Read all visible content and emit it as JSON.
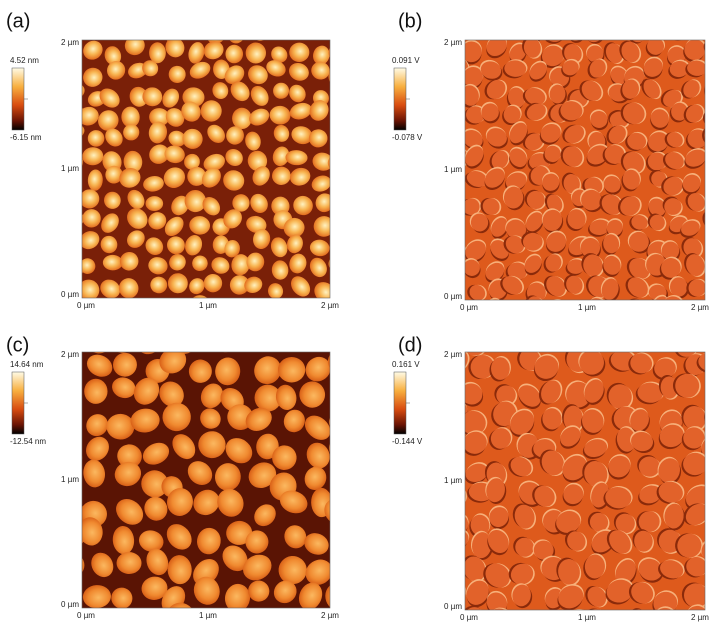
{
  "panels": [
    {
      "label": "(a)",
      "colorbar": {
        "max": "4.52 nm",
        "min": "-6.15 nm"
      },
      "y_ticks": [
        "2 µm",
        "1 µm",
        "0 µm"
      ],
      "x_ticks": [
        "0 µm",
        "1 µm",
        "2 µm"
      ]
    },
    {
      "label": "(b)",
      "colorbar": {
        "max": "0.091 V",
        "min": "-0.078 V"
      },
      "y_ticks": [
        "2 µm",
        "1 µm",
        "0 µm"
      ],
      "x_ticks": [
        "0 µm",
        "1 µm",
        "2 µm"
      ]
    },
    {
      "label": "(c)",
      "colorbar": {
        "max": "14.64 nm",
        "min": "-12.54 nm"
      },
      "y_ticks": [
        "2 µm",
        "1 µm",
        "0 µm"
      ],
      "x_ticks": [
        "0 µm",
        "1 µm",
        "2 µm"
      ]
    },
    {
      "label": "(d)",
      "colorbar": {
        "max": "0.161 V",
        "min": "-0.144 V"
      },
      "y_ticks": [
        "2 µm",
        "1 µm",
        "0 µm"
      ],
      "x_ticks": [
        "0 µm",
        "1 µm",
        "2 µm"
      ]
    }
  ]
}
